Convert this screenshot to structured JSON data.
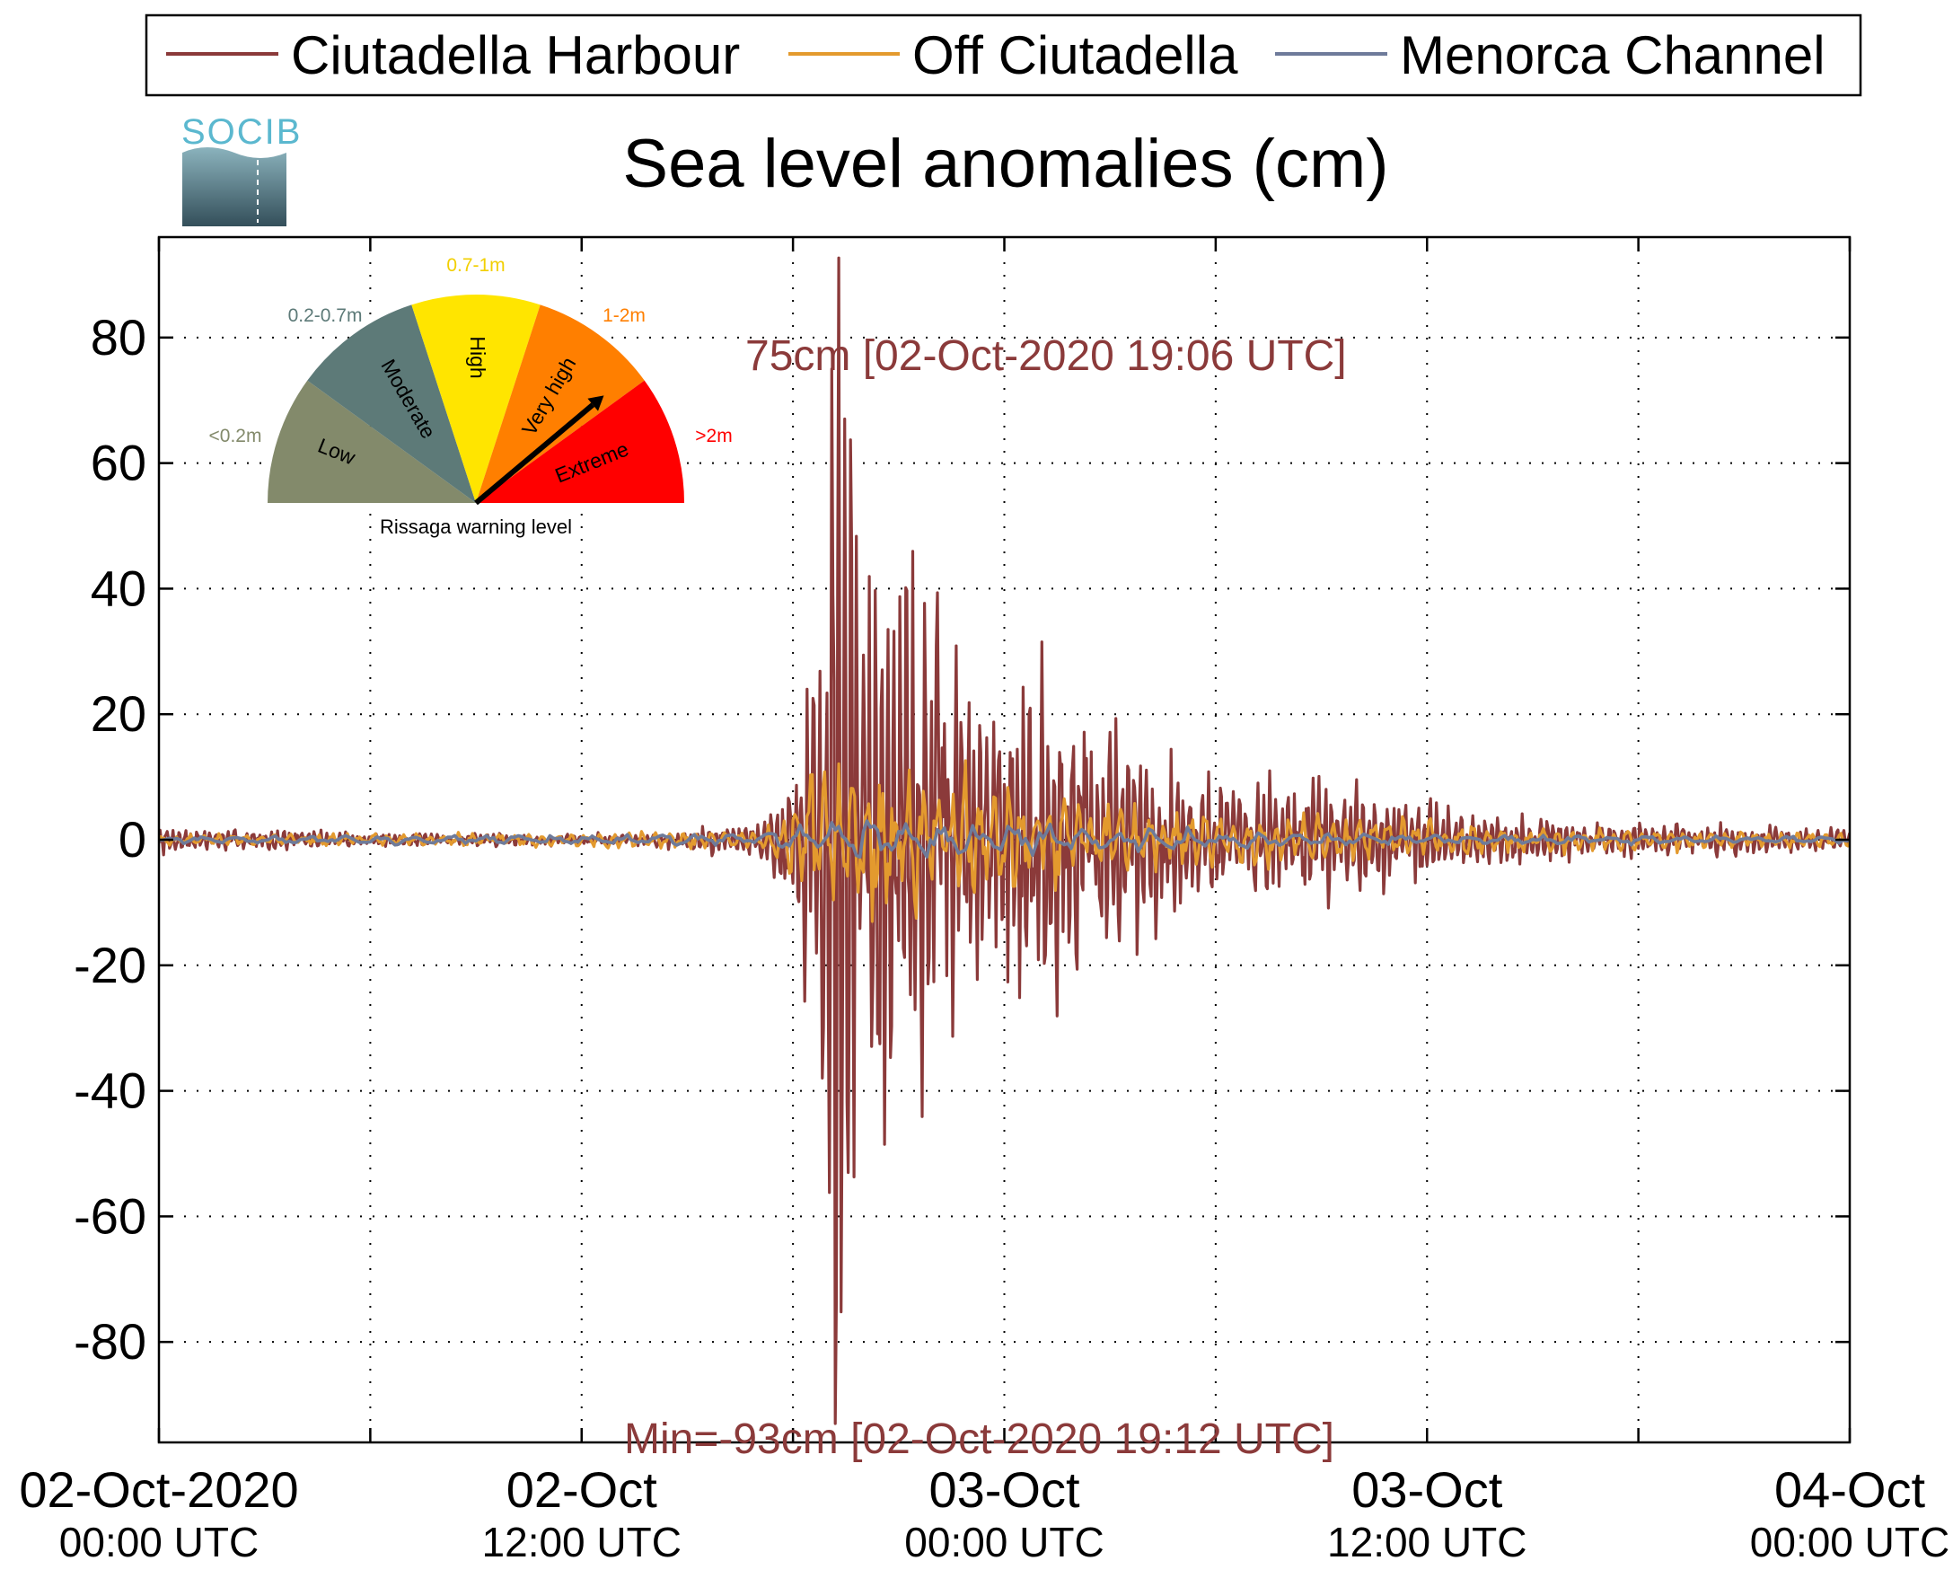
{
  "colors": {
    "harbour": "#8b3a3a",
    "off": "#e39a2e",
    "channel": "#6e7b9a"
  },
  "logo": {
    "text": "SOCIB",
    "icon": "socib-logo-icon"
  },
  "gauge": {
    "caption": "Rissaga warning level",
    "needle_level": "Very high",
    "segments": [
      {
        "name": "Low",
        "range": "<0.2m",
        "color": "#838a6b",
        "range_color": "#838a6b"
      },
      {
        "name": "Moderate",
        "range": "0.2-0.7m",
        "color": "#5d7a78",
        "range_color": "#5d7a78"
      },
      {
        "name": "High",
        "range": "0.7-1m",
        "color": "#ffe500",
        "range_color": "#f2cf00"
      },
      {
        "name": "Very high",
        "range": "1-2m",
        "color": "#ff7f00",
        "range_color": "#ff7f00"
      },
      {
        "name": "Extreme",
        "range": ">2m",
        "color": "#ff0000",
        "range_color": "#ff0000"
      }
    ]
  },
  "chart_data": {
    "type": "line",
    "title": "Sea level anomalies (cm)",
    "legend_position": "top",
    "grid": true,
    "ylim": [
      -96,
      96
    ],
    "yticks": [
      80,
      60,
      40,
      20,
      0,
      -20,
      -40,
      -60,
      -80
    ],
    "ytick_labels": [
      "80",
      "60",
      "40",
      "20",
      "0",
      "-20",
      "-40",
      "-60",
      "-80"
    ],
    "xlim": [
      "2020-10-02 00:00",
      "2020-10-04 00:00"
    ],
    "xticks": [
      {
        "date": "02-Oct-2020",
        "time": "00:00 UTC"
      },
      {
        "date": "02-Oct",
        "time": "12:00 UTC"
      },
      {
        "date": "03-Oct",
        "time": "00:00 UTC"
      },
      {
        "date": "03-Oct",
        "time": "12:00 UTC"
      },
      {
        "date": "04-Oct",
        "time": "00:00 UTC"
      }
    ],
    "annotations": {
      "max_label": "75cm [02-Oct-2020 19:06 UTC]",
      "min_label": "Min=-93cm [02-Oct-2020 19:12 UTC]"
    },
    "extremes": {
      "max": {
        "time": "2020-10-02 19:06",
        "value": 75
      },
      "min": {
        "time": "2020-10-02 19:12",
        "value": -93
      }
    },
    "series": [
      {
        "name": "Ciutadella Harbour",
        "color": "#8b3a3a",
        "envelope": [
          [
            "2020-10-02 00:00",
            2
          ],
          [
            "2020-10-02 04:00",
            1.5
          ],
          [
            "2020-10-02 08:00",
            1
          ],
          [
            "2020-10-02 14:00",
            1
          ],
          [
            "2020-10-02 17:00",
            3
          ],
          [
            "2020-10-02 18:00",
            12
          ],
          [
            "2020-10-02 18:45",
            40
          ],
          [
            "2020-10-02 19:06",
            75
          ],
          [
            "2020-10-02 19:12",
            93
          ],
          [
            "2020-10-02 20:00",
            55
          ],
          [
            "2020-10-02 21:00",
            45
          ],
          [
            "2020-10-02 22:00",
            35
          ],
          [
            "2020-10-03 00:00",
            28
          ],
          [
            "2020-10-03 01:30",
            30
          ],
          [
            "2020-10-03 03:00",
            20
          ],
          [
            "2020-10-03 05:00",
            12
          ],
          [
            "2020-10-03 07:00",
            9
          ],
          [
            "2020-10-03 09:00",
            10
          ],
          [
            "2020-10-03 12:00",
            6
          ],
          [
            "2020-10-03 16:00",
            3
          ],
          [
            "2020-10-04 00:00",
            2
          ]
        ]
      },
      {
        "name": "Off Ciutadella",
        "color": "#e39a2e",
        "envelope": [
          [
            "2020-10-02 00:00",
            0.8
          ],
          [
            "2020-10-02 17:00",
            1.5
          ],
          [
            "2020-10-02 18:00",
            6
          ],
          [
            "2020-10-02 19:00",
            14
          ],
          [
            "2020-10-02 21:00",
            12
          ],
          [
            "2020-10-03 00:00",
            9
          ],
          [
            "2020-10-03 03:00",
            6
          ],
          [
            "2020-10-03 08:00",
            4
          ],
          [
            "2020-10-03 14:00",
            2.5
          ],
          [
            "2020-10-04 00:00",
            1
          ]
        ]
      },
      {
        "name": "Menorca Channel",
        "color": "#6e7b9a",
        "envelope": [
          [
            "2020-10-02 00:00",
            0.5
          ],
          [
            "2020-10-02 17:00",
            1
          ],
          [
            "2020-10-02 19:00",
            4
          ],
          [
            "2020-10-02 22:00",
            3
          ],
          [
            "2020-10-03 03:00",
            2
          ],
          [
            "2020-10-03 10:00",
            1
          ],
          [
            "2020-10-04 00:00",
            0.5
          ]
        ]
      }
    ]
  }
}
